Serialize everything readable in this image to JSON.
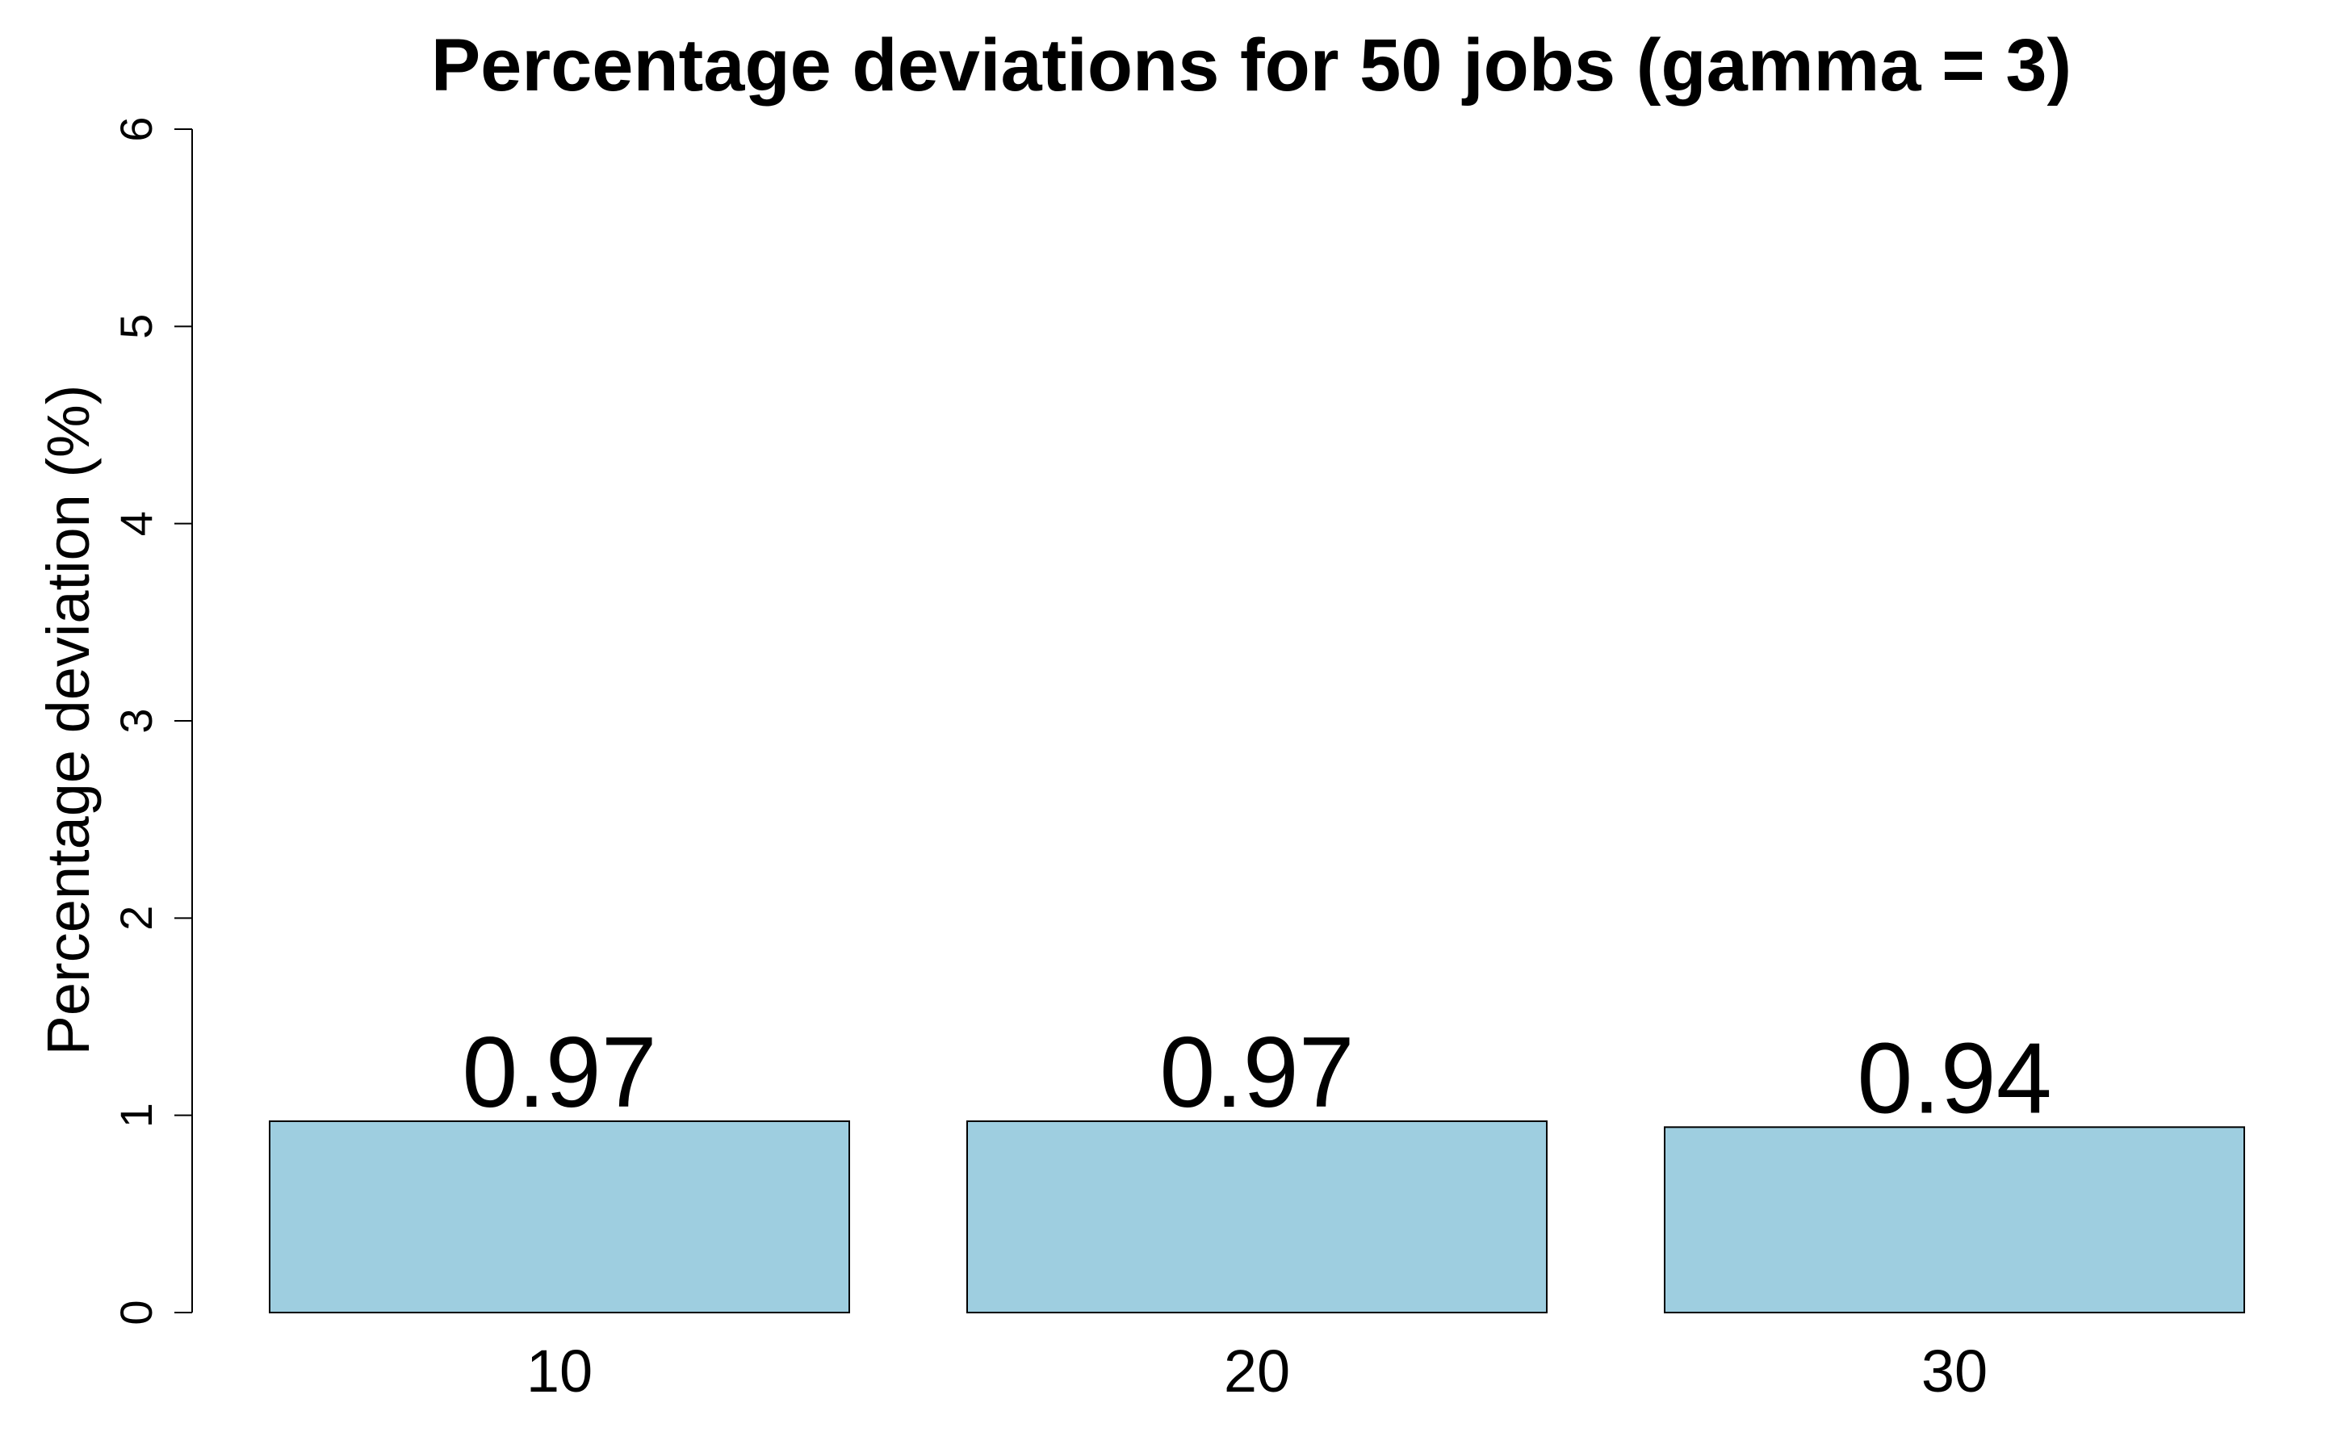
{
  "chart_data": {
    "type": "bar",
    "title": "Percentage deviations for 50 jobs (gamma = 3)",
    "xlabel": "",
    "ylabel": "Percentage deviation (%)",
    "categories": [
      "10",
      "20",
      "30"
    ],
    "values": [
      0.97,
      0.97,
      0.94
    ],
    "data_labels": [
      "0.97",
      "0.97",
      "0.94"
    ],
    "ylim": [
      0,
      6
    ],
    "yticks": [
      0,
      1,
      2,
      3,
      4,
      5,
      6
    ],
    "ytick_labels": [
      "0",
      "1",
      "2",
      "3",
      "4",
      "5",
      "6"
    ],
    "grid": false,
    "legend": "none",
    "bar_color": "#9ecee0",
    "bar_edge_color": "#000000"
  }
}
